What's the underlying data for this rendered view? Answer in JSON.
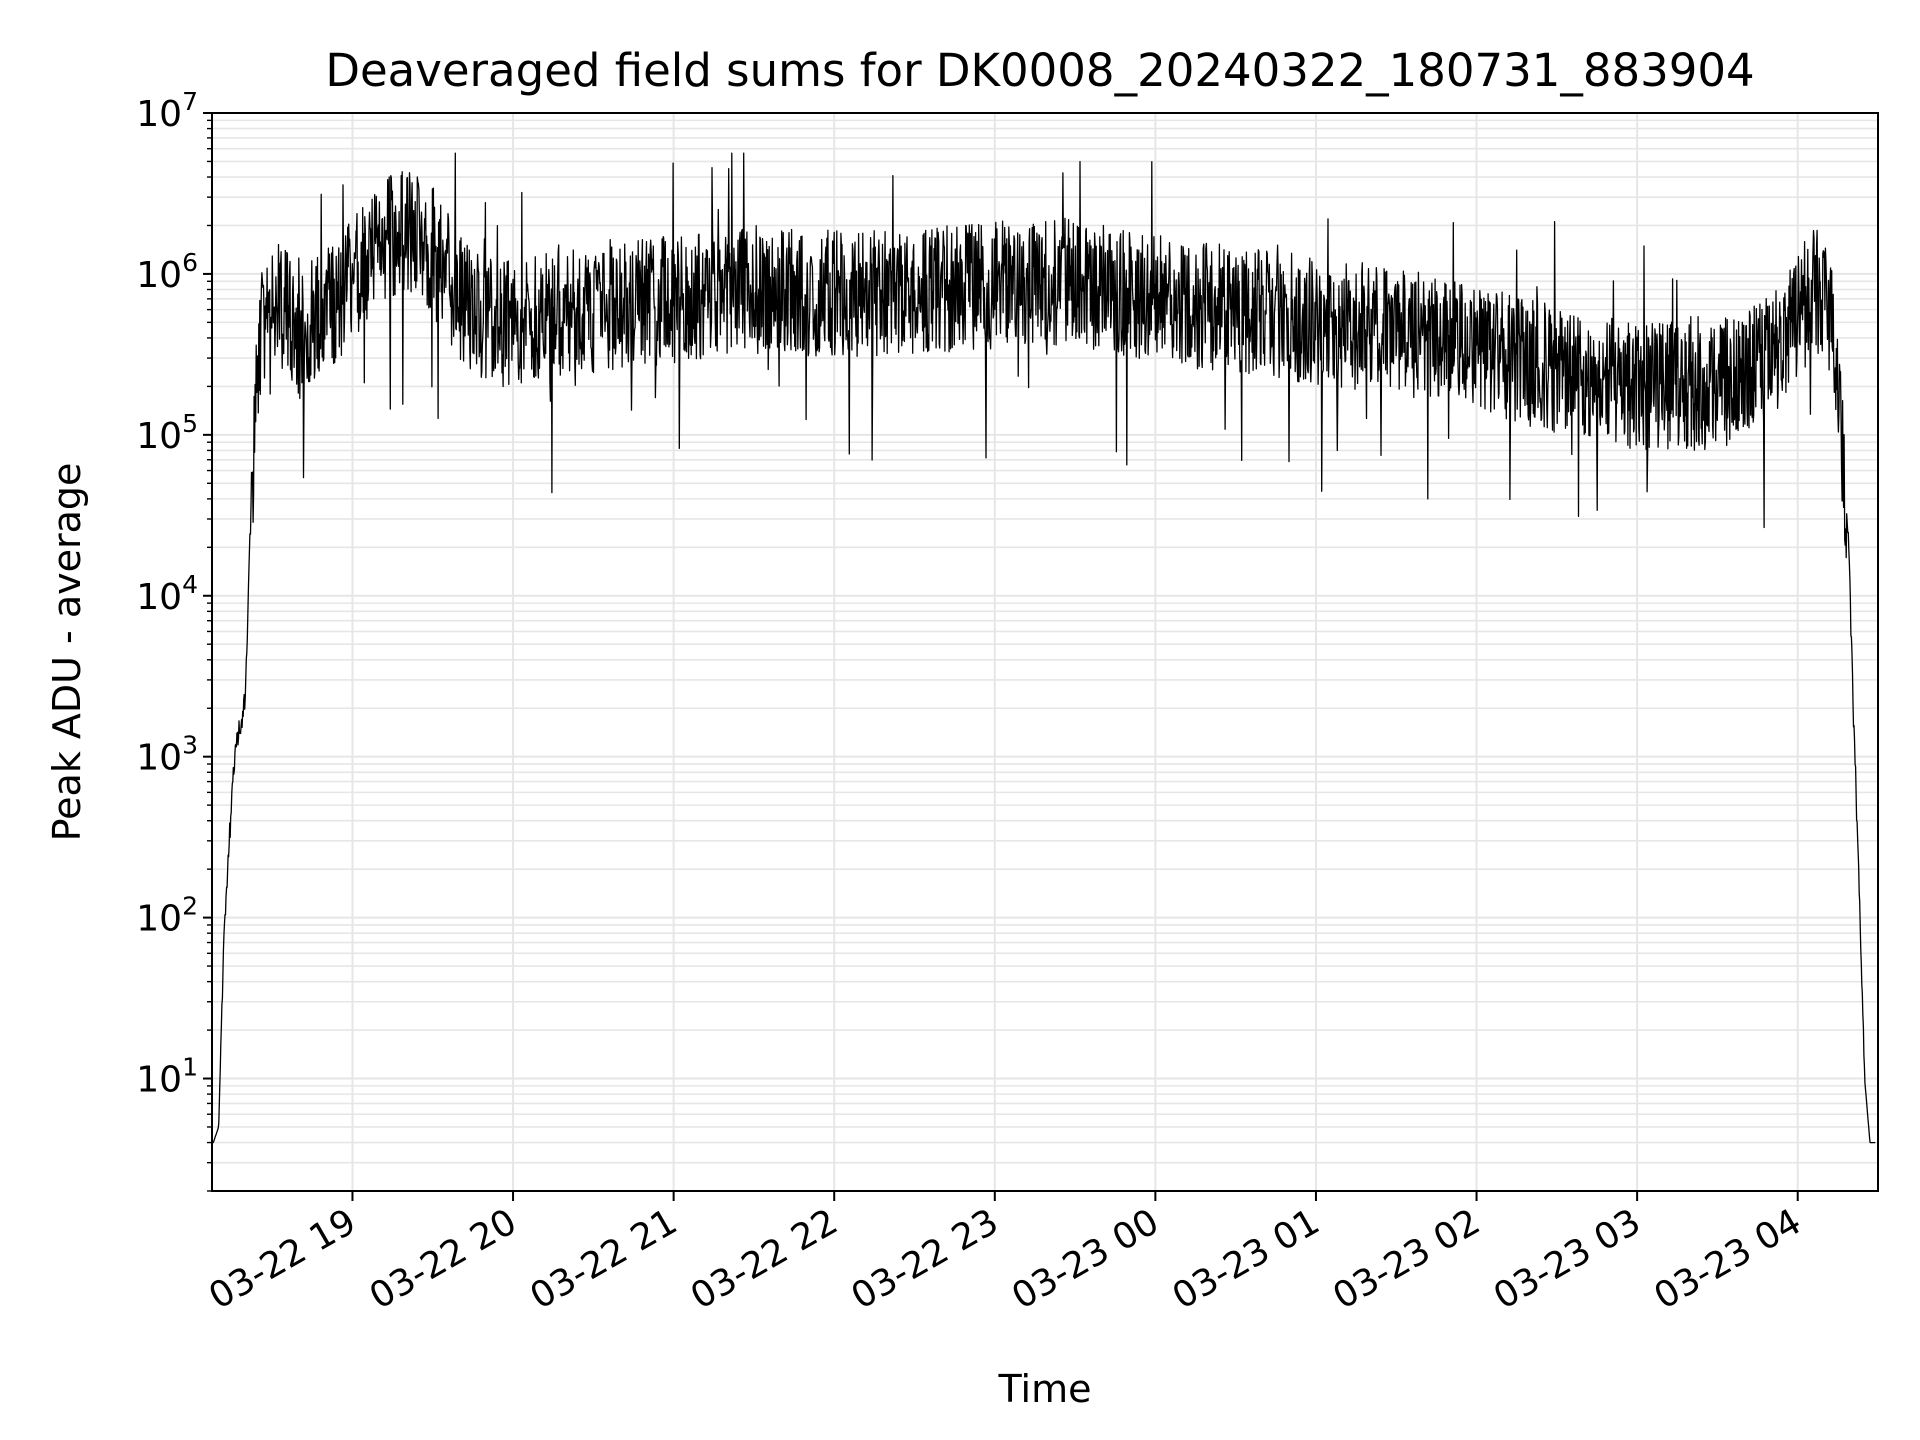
{
  "chart_data": {
    "type": "line",
    "title": "Deaveraged field sums for DK0008_20240322_180731_883904",
    "xlabel": "Time",
    "ylabel": "Peak ADU - average",
    "yscale": "log",
    "ylim": [
      2,
      10000000
    ],
    "xlim": [
      "2024-03-22 18:07:31",
      "2024-03-23 04:30:00"
    ],
    "grid": true,
    "line_color": "#000000",
    "grid_color": "#e6e6e6",
    "x_ticks": [
      "2024-03-22 19:00",
      "2024-03-22 20:00",
      "2024-03-22 21:00",
      "2024-03-22 22:00",
      "2024-03-22 23:00",
      "2024-03-23 00:00",
      "2024-03-23 01:00",
      "2024-03-23 02:00",
      "2024-03-23 03:00",
      "2024-03-23 04:00"
    ],
    "x_tick_labels": [
      "03-22 19",
      "03-22 20",
      "03-22 21",
      "03-22 22",
      "03-22 23",
      "03-23 00",
      "03-23 01",
      "03-23 02",
      "03-23 03",
      "03-23 04"
    ],
    "y_ticks": [
      10,
      100,
      1000,
      10000,
      100000,
      1000000,
      10000000
    ],
    "y_tick_labels": [
      {
        "base": "10",
        "exp": "1"
      },
      {
        "base": "10",
        "exp": "2"
      },
      {
        "base": "10",
        "exp": "3"
      },
      {
        "base": "10",
        "exp": "4"
      },
      {
        "base": "10",
        "exp": "5"
      },
      {
        "base": "10",
        "exp": "6"
      },
      {
        "base": "10",
        "exp": "7"
      }
    ],
    "series": [
      {
        "x": [
          "2024-03-22 18:07:31",
          "2024-03-22 18:08",
          "2024-03-22 18:10",
          "2024-03-22 18:12",
          "2024-03-22 18:14",
          "2024-03-22 18:16",
          "2024-03-22 18:18",
          "2024-03-22 18:20",
          "2024-03-22 18:22",
          "2024-03-22 18:24",
          "2024-03-22 18:26",
          "2024-03-22 18:28",
          "2024-03-22 18:30",
          "2024-03-22 18:33",
          "2024-03-22 18:36",
          "2024-03-22 18:40",
          "2024-03-22 18:45",
          "2024-03-22 18:50",
          "2024-03-22 18:55",
          "2024-03-22 19:00",
          "2024-03-22 19:10",
          "2024-03-22 19:20",
          "2024-03-22 19:30",
          "2024-03-22 19:40",
          "2024-03-22 19:50",
          "2024-03-22 20:00",
          "2024-03-22 20:30",
          "2024-03-22 21:00",
          "2024-03-22 21:30",
          "2024-03-22 22:00",
          "2024-03-22 22:30",
          "2024-03-22 23:00",
          "2024-03-22 23:30",
          "2024-03-23 00:00",
          "2024-03-23 00:30",
          "2024-03-23 01:00",
          "2024-03-23 01:30",
          "2024-03-23 02:00",
          "2024-03-23 02:30",
          "2024-03-23 03:00",
          "2024-03-23 03:30",
          "2024-03-23 03:50",
          "2024-03-23 04:00",
          "2024-03-23 04:05",
          "2024-03-23 04:10",
          "2024-03-23 04:13",
          "2024-03-23 04:16",
          "2024-03-23 04:19",
          "2024-03-23 04:21",
          "2024-03-23 04:23",
          "2024-03-23 04:25",
          "2024-03-23 04:27",
          "2024-03-23 04:29"
        ],
        "y": [
          4,
          4,
          5,
          80,
          300,
          1000,
          1500,
          2300,
          30000,
          200000,
          400000,
          600000,
          700000,
          650000,
          550000,
          400000,
          500000,
          600000,
          700000,
          900000,
          1500000,
          2000000,
          1400000,
          700000,
          500000,
          500000,
          600000,
          700000,
          800000,
          750000,
          800000,
          850000,
          900000,
          700000,
          600000,
          500000,
          450000,
          350000,
          250000,
          200000,
          200000,
          300000,
          500000,
          800000,
          700000,
          500000,
          100000,
          20000,
          1500,
          150,
          10,
          4,
          4
        ]
      }
    ]
  }
}
